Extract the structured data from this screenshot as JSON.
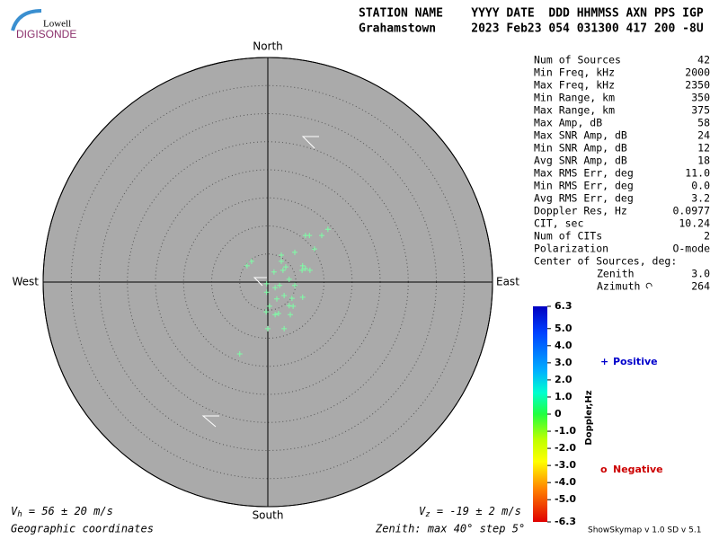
{
  "header": {
    "logo_top": "Lowell",
    "logo_bottom": "DIGISONDE",
    "labels": [
      "STATION NAME",
      "YYYY",
      "DATE",
      "DDD",
      "HHMMSS",
      "AXN",
      "PPS",
      "IGP"
    ],
    "values": [
      "Grahamstown",
      "2023",
      "Feb23",
      "054",
      "031300",
      "417",
      "200",
      "-8U"
    ]
  },
  "chart_data": {
    "type": "skymap",
    "directions": {
      "north": "North",
      "east": "East",
      "south": "South",
      "west": "West"
    },
    "xlim": [
      -40,
      40
    ],
    "ylim": [
      -40,
      40
    ],
    "rticks": [
      5,
      10,
      15,
      20,
      25,
      30,
      35,
      40
    ],
    "series": [
      {
        "color": "#7dffa6",
        "x": [
          10.7,
          9.6,
          7.4,
          6.7,
          8.3,
          4.8,
          2.4,
          2.4,
          -2.9,
          -3.7,
          3.2,
          6.2,
          6.7,
          7.5,
          6.1,
          2.7,
          1.1,
          3.8,
          2.1,
          1.3,
          -0.2,
          -0.2,
          4.8,
          2.9,
          6.2,
          4.3,
          1.6,
          3.8,
          0.3,
          4.5,
          -0.3,
          1.9,
          4.0,
          1.3,
          0,
          2.9,
          -5.0
        ],
        "y": [
          9.4,
          8.3,
          8.3,
          8.3,
          5.9,
          5.3,
          4.8,
          3.7,
          3.7,
          2.9,
          2.7,
          2.9,
          2.4,
          2.1,
          2.1,
          2.1,
          1.8,
          0.5,
          -0.6,
          -1.0,
          -0.3,
          -1.8,
          -0.6,
          -2.4,
          -2.7,
          -2.9,
          -3.0,
          -4.2,
          -4.3,
          -4.3,
          -5.3,
          -5.6,
          -5.8,
          -5.8,
          -8.3,
          -8.3,
          -12.8
        ]
      }
    ],
    "colorbar": {
      "label": "Doppler,Hz",
      "lim": [
        -6.3,
        6.3
      ],
      "ticks": [
        6.3,
        {
          "value": 5,
          "label": "5.0"
        },
        {
          "value": 4,
          "label": "4.0"
        },
        {
          "value": 3,
          "label": "3.0"
        },
        {
          "value": 2,
          "label": "2.0"
        },
        {
          "value": 1,
          "label": "1.0"
        },
        0,
        {
          "value": -1,
          "label": "-1.0"
        },
        {
          "value": -2,
          "label": "-2.0"
        },
        {
          "value": -3,
          "label": "-3.0"
        },
        {
          "value": -4,
          "label": "-4.0"
        },
        {
          "value": -5,
          "label": "-5.0"
        },
        -6.3
      ]
    },
    "legend": [
      {
        "symbol": "+",
        "name": "Positive",
        "color": "#0000cc"
      },
      {
        "symbol": "o",
        "name": "Negative",
        "color": "#cc0000"
      }
    ]
  },
  "stats": {
    "rows": [
      [
        "Num of Sources",
        "42"
      ],
      [
        "Min Freq, kHz",
        "2000"
      ],
      [
        "Max Freq, kHz",
        "2350"
      ],
      [
        "Min Range, km",
        "350"
      ],
      [
        "Max Range, km",
        "375"
      ],
      [
        "Max Amp, dB",
        "58"
      ],
      [
        "Max SNR Amp, dB",
        "24"
      ],
      [
        "Min SNR Amp, dB",
        "12"
      ],
      [
        "Avg SNR Amp, dB",
        "18"
      ],
      [
        "Max RMS Err, deg",
        "11.0"
      ],
      [
        "Min RMS Err, deg",
        "0.0"
      ],
      [
        "Avg RMS Err, deg",
        "3.2"
      ],
      [
        "Doppler Res, Hz",
        "0.0977"
      ],
      [
        "CIT, sec",
        "10.24"
      ],
      [
        "Num of CITs",
        "2"
      ],
      [
        "Polarization",
        "O-mode"
      ]
    ],
    "center_title": "Center of Sources, deg:",
    "center_rows": [
      [
        "Zenith",
        "3.0"
      ],
      [
        "Azimuth",
        "264"
      ]
    ]
  },
  "footer": {
    "vh": {
      "symbol": "V",
      "sub": "h",
      "text": " = 56 ± 20 m/s"
    },
    "vz": {
      "symbol": "V",
      "sub": "z",
      "text": " = -19 ± 2 m/s"
    },
    "coords": "Geographic coordinates",
    "zenith": "Zenith: max 40°  step 5°",
    "version": "ShowSkymap v 1.0  SD v 5.1"
  }
}
